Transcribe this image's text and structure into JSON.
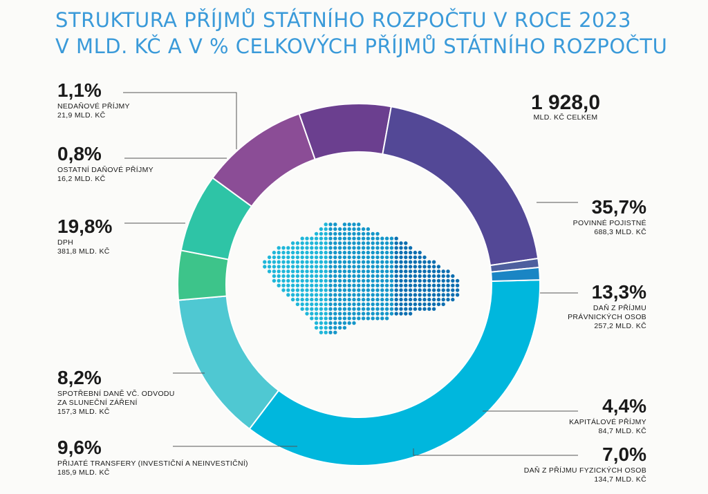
{
  "title": {
    "line1": "STRUKTURA PŘÍJMŮ STÁTNÍHO ROZPOČTU V ROCE 2023",
    "line2": "V MLD. KČ A V % CELKOVÝCH PŘÍJMŮ STÁTNÍHO ROZPOČTU"
  },
  "total": {
    "value": "1 928,0",
    "label": "MLD. KČ CELKEM"
  },
  "colors": {
    "dots": [
      "#1fb6d9",
      "#1596c9",
      "#0d6eb0"
    ]
  },
  "chart_data": {
    "type": "pie",
    "donut": true,
    "total": 1928.0,
    "unit": "mld. Kč",
    "slices": [
      {
        "name": "POVINNÉ POJISTNÉ",
        "percent": 35.7,
        "value": 688.3,
        "pct_text": "35,7%",
        "value_text": "688,3 MLD. KČ",
        "label_lines": [
          "POVINNÉ POJISTNÉ"
        ],
        "color": "#00b7dd"
      },
      {
        "name": "DAŇ Z PŘÍJMU PRÁVNICKÝCH OSOB",
        "percent": 13.3,
        "value": 257.2,
        "pct_text": "13,3%",
        "value_text": "257,2 MLD. KČ",
        "label_lines": [
          "DAŇ Z PŘÍJMU",
          "PRÁVNICKÝCH OSOB"
        ],
        "color": "#4fc8d2"
      },
      {
        "name": "KAPITÁLOVÉ PŘÍJMY",
        "percent": 4.4,
        "value": 84.7,
        "pct_text": "4,4%",
        "value_text": "84,7 MLD. KČ",
        "label_lines": [
          "KAPITÁLOVÉ PŘÍJMY"
        ],
        "color": "#3dc48a"
      },
      {
        "name": "DAŇ Z PŘÍJMU FYZICKÝCH OSOB",
        "percent": 7.0,
        "value": 134.7,
        "pct_text": "7,0%",
        "value_text": "134,7 MLD. KČ",
        "label_lines": [
          "DAŇ Z PŘÍJMU FYZICKÝCH OSOB"
        ],
        "color": "#2ec4a6"
      },
      {
        "name": "PŘIJATÉ TRANSFERY (INVESTIČNÍ A NEINVESTIČNÍ)",
        "percent": 9.6,
        "value": 185.9,
        "pct_text": "9,6%",
        "value_text": "185,9 MLD. KČ",
        "label_lines": [
          "PŘIJATÉ TRANSFERY (INVESTIČNÍ A NEINVESTIČNÍ)"
        ],
        "color": "#8b4d96"
      },
      {
        "name": "SPOTŘEBNÍ DANĚ VČ. ODVODU ZA SLUNEČNÍ ZÁŘENÍ",
        "percent": 8.2,
        "value": 157.3,
        "pct_text": "8,2%",
        "value_text": "157,3 MLD. KČ",
        "label_lines": [
          "SPOTŘEBNÍ DANĚ VČ. ODVODU",
          "ZA SLUNEČNÍ ZÁŘENÍ"
        ],
        "color": "#6b3f8f"
      },
      {
        "name": "DPH",
        "percent": 19.8,
        "value": 381.8,
        "pct_text": "19,8%",
        "value_text": "381,8 MLD. KČ",
        "label_lines": [
          "DPH"
        ],
        "color": "#534896"
      },
      {
        "name": "OSTATNÍ DAŇOVÉ PŘÍJMY",
        "percent": 0.8,
        "value": 16.2,
        "pct_text": "0,8%",
        "value_text": "16,2 MLD. KČ",
        "label_lines": [
          "OSTATNÍ DAŇOVÉ PŘÍJMY"
        ],
        "color": "#4e5f9e"
      },
      {
        "name": "NEDAŇOVÉ PŘÍJMY",
        "percent": 1.1,
        "value": 21.9,
        "pct_text": "1,1%",
        "value_text": "21,9 MLD. KČ",
        "label_lines": [
          "NEDAŇOVÉ PŘÍJMY"
        ],
        "color": "#1a85c4"
      }
    ]
  }
}
